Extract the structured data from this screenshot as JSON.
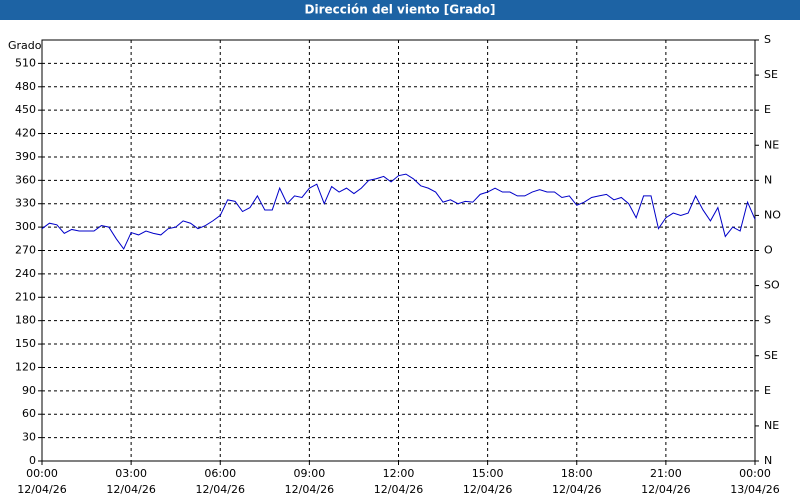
{
  "window_title": "Dirección del viento [Grado]",
  "chart_data": {
    "type": "line",
    "y_axis_label": "Grado",
    "grid": true,
    "xlim": [
      0,
      24
    ],
    "xticks": [
      {
        "value": 0,
        "label": [
          "00:00",
          "12/04/26"
        ]
      },
      {
        "value": 3,
        "label": [
          "03:00",
          "12/04/26"
        ]
      },
      {
        "value": 6,
        "label": [
          "06:00",
          "12/04/26"
        ]
      },
      {
        "value": 9,
        "label": [
          "09:00",
          "12/04/26"
        ]
      },
      {
        "value": 12,
        "label": [
          "12:00",
          "12/04/26"
        ]
      },
      {
        "value": 15,
        "label": [
          "15:00",
          "12/04/26"
        ]
      },
      {
        "value": 18,
        "label": [
          "18:00",
          "12/04/26"
        ]
      },
      {
        "value": 21,
        "label": [
          "21:00",
          "12/04/26"
        ]
      },
      {
        "value": 24,
        "label": [
          "00:00",
          "13/04/26"
        ]
      }
    ],
    "ylim": [
      0,
      540
    ],
    "yticks": [
      0,
      30,
      60,
      90,
      120,
      150,
      180,
      210,
      240,
      270,
      300,
      330,
      360,
      390,
      420,
      450,
      480,
      510
    ],
    "y2lim": [
      0,
      540
    ],
    "y2ticks": [
      {
        "value": 0,
        "label": "N"
      },
      {
        "value": 45,
        "label": "NE"
      },
      {
        "value": 90,
        "label": "E"
      },
      {
        "value": 135,
        "label": "SE"
      },
      {
        "value": 180,
        "label": "S"
      },
      {
        "value": 225,
        "label": "SO"
      },
      {
        "value": 270,
        "label": "O"
      },
      {
        "value": 315,
        "label": "NO"
      },
      {
        "value": 360,
        "label": "N"
      },
      {
        "value": 405,
        "label": "NE"
      },
      {
        "value": 450,
        "label": "E"
      },
      {
        "value": 495,
        "label": "SE"
      },
      {
        "value": 540,
        "label": "S"
      }
    ],
    "x": [
      0,
      0.25,
      0.5,
      0.75,
      1,
      1.25,
      1.5,
      1.75,
      2,
      2.25,
      2.5,
      2.75,
      3,
      3.25,
      3.5,
      3.75,
      4,
      4.25,
      4.5,
      4.75,
      5,
      5.25,
      5.5,
      5.75,
      6,
      6.25,
      6.5,
      6.75,
      7,
      7.25,
      7.5,
      7.75,
      8,
      8.25,
      8.5,
      8.75,
      9,
      9.25,
      9.5,
      9.75,
      10,
      10.25,
      10.5,
      10.75,
      11,
      11.25,
      11.5,
      11.75,
      12,
      12.25,
      12.5,
      12.75,
      13,
      13.25,
      13.5,
      13.75,
      14,
      14.25,
      14.5,
      14.75,
      15,
      15.25,
      15.5,
      15.75,
      16,
      16.25,
      16.5,
      16.75,
      17,
      17.25,
      17.5,
      17.75,
      18,
      18.25,
      18.5,
      18.75,
      19,
      19.25,
      19.5,
      19.75,
      20,
      20.25,
      20.5,
      20.75,
      21,
      21.25,
      21.5,
      21.75,
      22,
      22.25,
      22.5,
      22.75,
      23,
      23.25,
      23.5,
      23.75,
      24
    ],
    "series": [
      {
        "color": "#0000c8",
        "values": [
          298,
          305,
          303,
          292,
          297,
          295,
          295,
          295,
          302,
          300,
          285,
          272,
          293,
          290,
          295,
          292,
          290,
          298,
          300,
          308,
          305,
          298,
          302,
          308,
          315,
          335,
          333,
          320,
          325,
          340,
          322,
          322,
          350,
          330,
          340,
          338,
          350,
          355,
          330,
          352,
          345,
          350,
          343,
          350,
          360,
          362,
          365,
          358,
          366,
          368,
          362,
          353,
          350,
          345,
          332,
          335,
          330,
          333,
          332,
          342,
          345,
          350,
          345,
          345,
          340,
          340,
          345,
          348,
          345,
          345,
          338,
          340,
          328,
          332,
          338,
          340,
          342,
          335,
          338,
          330,
          312,
          340,
          340,
          298,
          312,
          318,
          315,
          318,
          340,
          322,
          308,
          325,
          288,
          300,
          295,
          332,
          310
        ]
      }
    ]
  }
}
